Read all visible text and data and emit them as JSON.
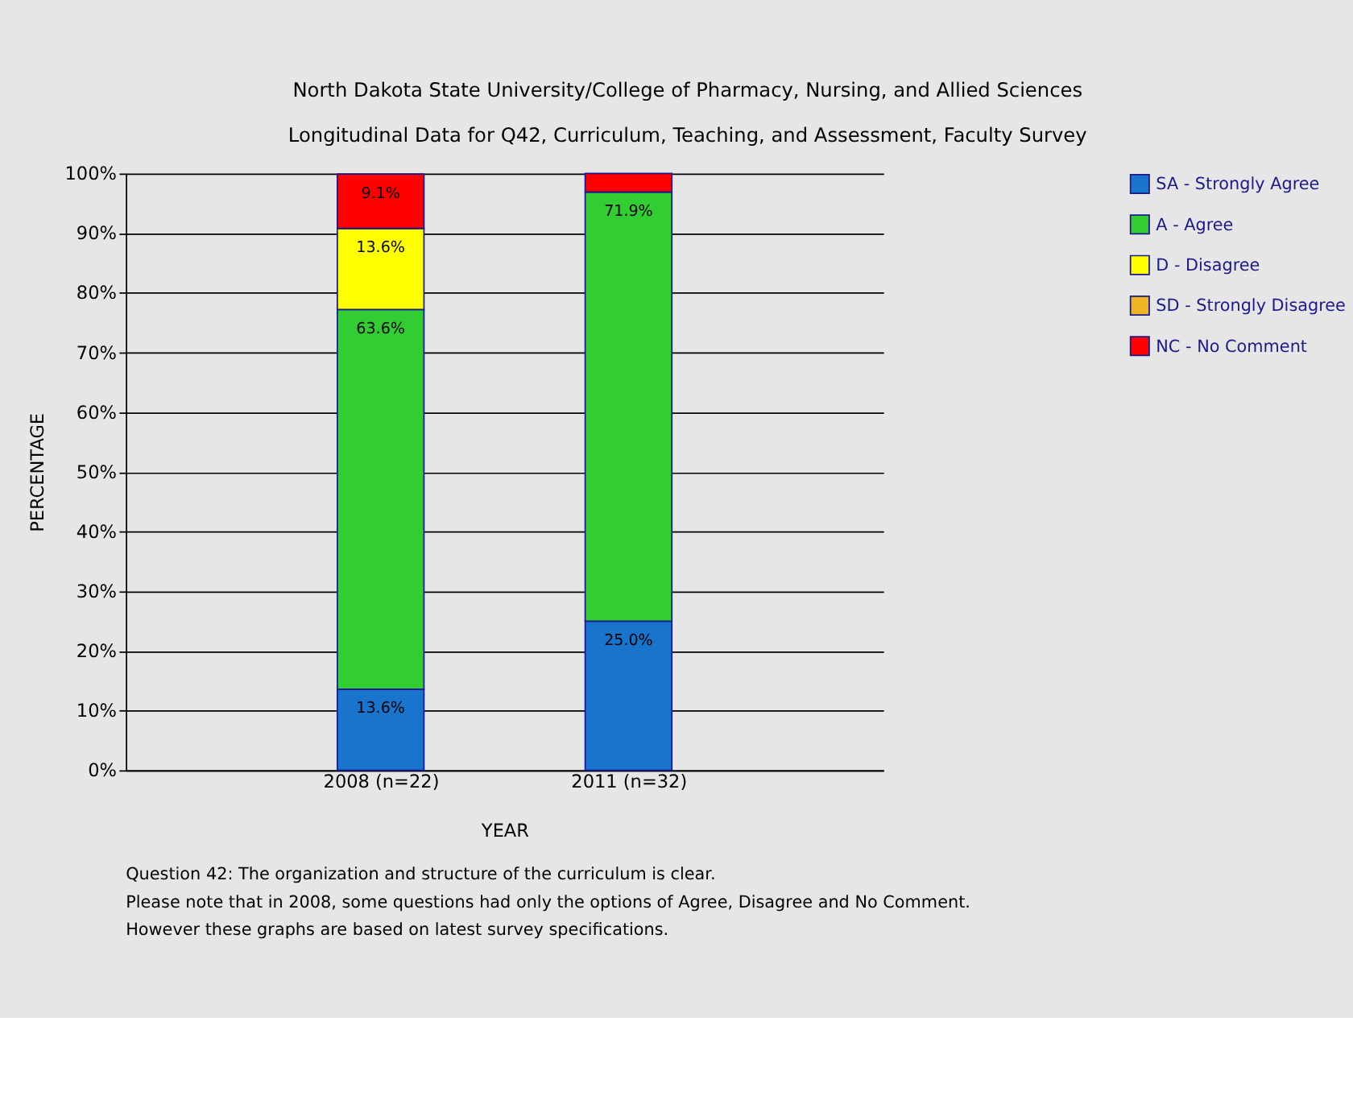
{
  "chart_data": {
    "type": "bar",
    "stacked": true,
    "title": "North Dakota State University/College of Pharmacy, Nursing, and Allied Sciences",
    "subtitle": "Longitudinal Data for Q42, Curriculum, Teaching, and Assessment, Faculty Survey",
    "xlabel": "YEAR",
    "ylabel": "PERCENTAGE",
    "categories": [
      "2008 (n=22)",
      "2011 (n=32)"
    ],
    "series": [
      {
        "name": "SA - Strongly Agree",
        "color": "#1874cd",
        "values": [
          13.6,
          25.0
        ],
        "value_labels": [
          "13.6%",
          "25.0%"
        ]
      },
      {
        "name": "A - Agree",
        "color": "#32cd32",
        "values": [
          63.6,
          71.9
        ],
        "value_labels": [
          "63.6%",
          "71.9%"
        ]
      },
      {
        "name": "D - Disagree",
        "color": "#ffff00",
        "values": [
          13.6,
          0
        ],
        "value_labels": [
          "13.6%",
          null
        ]
      },
      {
        "name": "SD - Strongly Disagree",
        "color": "#eeb422",
        "values": [
          0,
          0
        ],
        "value_labels": [
          null,
          null
        ]
      },
      {
        "name": "NC - No Comment",
        "color": "#ff0000",
        "values": [
          9.1,
          3.1
        ],
        "value_labels": [
          "9.1%",
          null
        ]
      }
    ],
    "ylim": [
      0,
      100
    ],
    "yticks": [
      {
        "value": 0,
        "label": "0%"
      },
      {
        "value": 10,
        "label": "10%"
      },
      {
        "value": 20,
        "label": "20%"
      },
      {
        "value": 30,
        "label": "30%"
      },
      {
        "value": 40,
        "label": "40%"
      },
      {
        "value": 50,
        "label": "50%"
      },
      {
        "value": 60,
        "label": "60%"
      },
      {
        "value": 70,
        "label": "70%"
      },
      {
        "value": 80,
        "label": "80%"
      },
      {
        "value": 90,
        "label": "90%"
      },
      {
        "value": 100,
        "label": "100%"
      }
    ],
    "grid": "y",
    "legend": "right",
    "annotations": [
      "Question 42: The organization and structure of the curriculum is clear.",
      "Please note that in 2008, some questions had only the options of Agree, Disagree and No Comment.",
      "However these graphs are based on latest survey specifications."
    ]
  }
}
